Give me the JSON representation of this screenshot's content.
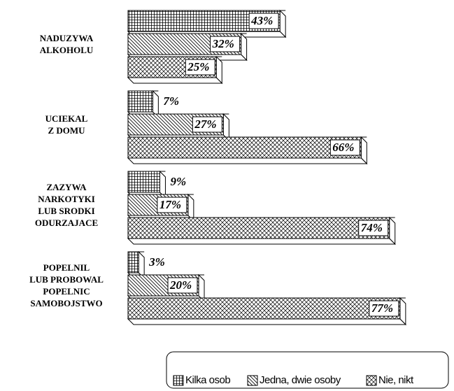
{
  "chart_data": {
    "type": "bar",
    "orientation": "horizontal",
    "style": "3d",
    "categories": [
      "NADUZYWA\nALKOHOLU",
      "UCIEKAL\nZ DOMU",
      "ZAZYWA\nNARKOTYKI\nLUB SRODKI\nODURZAJACE",
      "POPELNIL\nLUB PROBOWAL\nPOPELNIC\nSAMOBOJSTWO"
    ],
    "series": [
      {
        "name": "Kilka osob",
        "color": "#000000",
        "pattern": "grid",
        "values": [
          43,
          7,
          9,
          3
        ],
        "value_labels": [
          "43%",
          "7%",
          "9%",
          "3%"
        ]
      },
      {
        "name": "Jedna, dwie osoby",
        "color": "#000000",
        "pattern": "diagonal",
        "values": [
          32,
          27,
          17,
          20
        ],
        "value_labels": [
          "32%",
          "27%",
          "17%",
          "20%"
        ]
      },
      {
        "name": "Nie, nikt",
        "color": "#000000",
        "pattern": "crosshatch",
        "values": [
          25,
          66,
          74,
          77
        ],
        "value_labels": [
          "25%",
          "66%",
          "74%",
          "77%"
        ]
      }
    ],
    "legend": "bottom-right"
  }
}
